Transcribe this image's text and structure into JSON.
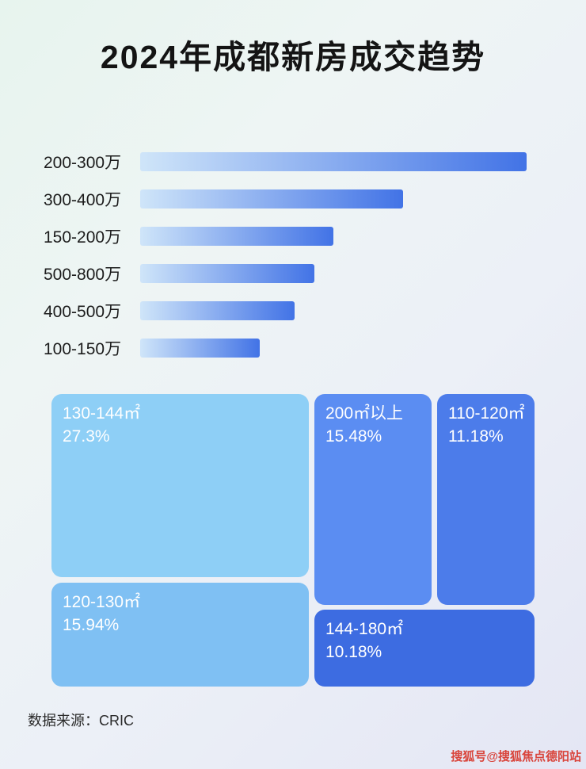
{
  "title": "2024年成都新房成交趋势",
  "footer": {
    "source_label": "数据来源：CRIC"
  },
  "watermark": "搜狐号@搜狐焦点德阳站",
  "colors": {
    "bar_gradient_start": "#cfe5f9",
    "bar_gradient_end": "#4273e6",
    "title_color": "#141414",
    "watermark_color": "#d9453c"
  },
  "chart_data": [
    {
      "type": "bar",
      "orientation": "horizontal",
      "title": "2024年成都新房成交趋势",
      "categories": [
        "200-300万",
        "300-400万",
        "150-200万",
        "500-800万",
        "400-500万",
        "100-150万"
      ],
      "values": [
        100,
        68,
        50,
        45,
        40,
        31
      ],
      "value_note": "relative bar length, percent of longest bar (no numeric labels shown in image)",
      "xlabel": "",
      "ylabel": "",
      "grid": false,
      "legend": false
    },
    {
      "type": "treemap",
      "title": "",
      "items": [
        {
          "label": "130-144㎡",
          "value": "27.3%",
          "color": "#8ecff6"
        },
        {
          "label": "120-130㎡",
          "value": "15.94%",
          "color": "#7fc0f3"
        },
        {
          "label": "200㎡以上",
          "value": "15.48%",
          "color": "#5b8df2"
        },
        {
          "label": "110-120㎡",
          "value": "11.18%",
          "color": "#4c7cea"
        },
        {
          "label": "144-180㎡",
          "value": "10.18%",
          "color": "#3d6ce1"
        }
      ]
    }
  ]
}
